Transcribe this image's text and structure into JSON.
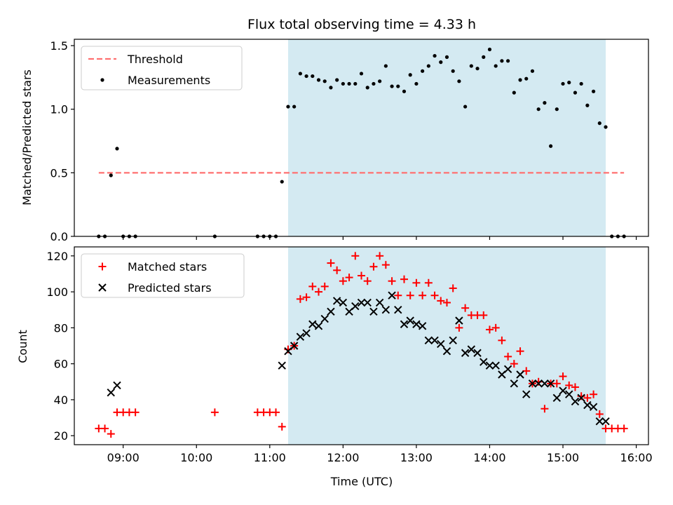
{
  "figure": {
    "title": "Flux total observing time = 4.33 h"
  },
  "colors": {
    "shade": "#add8e6",
    "threshold": "#ff7070",
    "measurement": "#000000",
    "matched": "#ff0000",
    "predicted": "#000000"
  },
  "chart_data": [
    {
      "type": "scatter",
      "title": "Flux total observing time = 4.33 h",
      "xlabel": "",
      "ylabel": "Matched/Predicted stars",
      "xlim": [
        "08:20",
        "16:10"
      ],
      "ylim": [
        0,
        1.55
      ],
      "y_ticks": [
        0.0,
        0.5,
        1.0,
        1.5
      ],
      "y_tick_labels": [
        "0.0",
        "0.5",
        "1.0",
        "1.5"
      ],
      "grid": false,
      "legend_position": "top-left",
      "shaded_region": {
        "start": "11:15",
        "end": "15:35"
      },
      "series": [
        {
          "name": "Threshold",
          "style": "dashed-line",
          "x": [
            "08:40",
            "15:50"
          ],
          "y": [
            0.5,
            0.5
          ]
        },
        {
          "name": "Measurements",
          "style": "dot",
          "x": [
            "08:40",
            "08:45",
            "08:50",
            "08:55",
            "09:00",
            "09:05",
            "09:10",
            "10:15",
            "10:50",
            "10:55",
            "11:00",
            "11:05",
            "11:10",
            "11:15",
            "11:20",
            "11:25",
            "11:30",
            "11:35",
            "11:40",
            "11:45",
            "11:50",
            "11:55",
            "12:00",
            "12:05",
            "12:10",
            "12:15",
            "12:20",
            "12:25",
            "12:30",
            "12:35",
            "12:40",
            "12:45",
            "12:50",
            "12:55",
            "13:00",
            "13:05",
            "13:10",
            "13:15",
            "13:20",
            "13:25",
            "13:30",
            "13:35",
            "13:40",
            "13:45",
            "13:50",
            "13:55",
            "14:00",
            "14:05",
            "14:10",
            "14:15",
            "14:20",
            "14:25",
            "14:30",
            "14:35",
            "14:40",
            "14:45",
            "14:50",
            "14:55",
            "15:00",
            "15:05",
            "15:10",
            "15:15",
            "15:20",
            "15:25",
            "15:30",
            "15:35",
            "15:40",
            "15:45",
            "15:50"
          ],
          "y": [
            0,
            0,
            0.48,
            0.69,
            0,
            0,
            0,
            0,
            0,
            0,
            0,
            0,
            0.43,
            1.02,
            1.02,
            1.28,
            1.26,
            1.26,
            1.23,
            1.22,
            1.17,
            1.23,
            1.2,
            1.2,
            1.2,
            1.28,
            1.17,
            1.2,
            1.22,
            1.34,
            1.18,
            1.18,
            1.14,
            1.27,
            1.2,
            1.3,
            1.34,
            1.42,
            1.37,
            1.41,
            1.3,
            1.22,
            1.02,
            1.34,
            1.32,
            1.41,
            1.47,
            1.34,
            1.38,
            1.38,
            1.13,
            1.23,
            1.24,
            1.3,
            1.0,
            1.05,
            0.71,
            1.0,
            1.2,
            1.21,
            1.13,
            1.2,
            1.03,
            1.14,
            0.89,
            0.86,
            0,
            0,
            0
          ]
        }
      ]
    },
    {
      "type": "scatter",
      "xlabel": "Time (UTC)",
      "ylabel": "Count",
      "xlim": [
        "08:20",
        "16:10"
      ],
      "ylim": [
        15,
        125
      ],
      "x_tick_labels": [
        "09:00",
        "10:00",
        "11:00",
        "12:00",
        "13:00",
        "14:00",
        "15:00",
        "16:00"
      ],
      "y_ticks": [
        20,
        40,
        60,
        80,
        100,
        120
      ],
      "y_tick_labels": [
        "20",
        "40",
        "60",
        "80",
        "100",
        "120"
      ],
      "grid": false,
      "legend_position": "top-left",
      "shaded_region": {
        "start": "11:15",
        "end": "15:35"
      },
      "series": [
        {
          "name": "Matched stars",
          "marker": "plus",
          "x": [
            "08:40",
            "08:45",
            "08:50",
            "08:55",
            "09:00",
            "09:05",
            "09:10",
            "10:15",
            "10:50",
            "10:55",
            "11:00",
            "11:05",
            "11:10",
            "11:15",
            "11:20",
            "11:25",
            "11:30",
            "11:35",
            "11:40",
            "11:45",
            "11:50",
            "11:55",
            "12:00",
            "12:05",
            "12:10",
            "12:15",
            "12:20",
            "12:25",
            "12:30",
            "12:35",
            "12:40",
            "12:45",
            "12:50",
            "12:55",
            "13:00",
            "13:05",
            "13:10",
            "13:15",
            "13:20",
            "13:25",
            "13:30",
            "13:35",
            "13:40",
            "13:45",
            "13:50",
            "13:55",
            "14:00",
            "14:05",
            "14:10",
            "14:15",
            "14:20",
            "14:25",
            "14:30",
            "14:35",
            "14:40",
            "14:45",
            "14:50",
            "14:55",
            "15:00",
            "15:05",
            "15:10",
            "15:15",
            "15:20",
            "15:25",
            "15:30",
            "15:35",
            "15:40",
            "15:45",
            "15:50"
          ],
          "y": [
            24,
            24,
            21,
            33,
            33,
            33,
            33,
            33,
            33,
            33,
            33,
            33,
            25,
            68,
            70,
            96,
            97,
            103,
            100,
            103,
            116,
            112,
            106,
            108,
            120,
            109,
            106,
            114,
            120,
            115,
            106,
            98,
            107,
            98,
            105,
            98,
            105,
            98,
            95,
            94,
            102,
            80,
            91,
            87,
            87,
            87,
            79,
            80,
            73,
            64,
            60,
            67,
            56,
            49,
            50,
            35,
            49,
            49,
            53,
            48,
            47,
            42,
            41,
            43,
            32,
            24,
            24,
            24,
            24
          ]
        },
        {
          "name": "Predicted stars",
          "marker": "x",
          "x": [
            "08:50",
            "08:55",
            "11:10",
            "11:15",
            "11:20",
            "11:25",
            "11:30",
            "11:35",
            "11:40",
            "11:45",
            "11:50",
            "11:55",
            "12:00",
            "12:05",
            "12:10",
            "12:15",
            "12:20",
            "12:25",
            "12:30",
            "12:35",
            "12:40",
            "12:45",
            "12:50",
            "12:55",
            "13:00",
            "13:05",
            "13:10",
            "13:15",
            "13:20",
            "13:25",
            "13:30",
            "13:35",
            "13:40",
            "13:45",
            "13:50",
            "13:55",
            "14:00",
            "14:05",
            "14:10",
            "14:15",
            "14:20",
            "14:25",
            "14:30",
            "14:35",
            "14:40",
            "14:45",
            "14:50",
            "14:55",
            "15:00",
            "15:05",
            "15:10",
            "15:15",
            "15:20",
            "15:25",
            "15:30",
            "15:35"
          ],
          "y": [
            44,
            48,
            59,
            67,
            70,
            75,
            77,
            82,
            81,
            85,
            89,
            95,
            94,
            89,
            92,
            94,
            94,
            89,
            94,
            90,
            98,
            90,
            82,
            84,
            82,
            81,
            73,
            73,
            71,
            67,
            73,
            84,
            66,
            68,
            66,
            61,
            59,
            59,
            54,
            57,
            49,
            54,
            43,
            49,
            49,
            49,
            49,
            41,
            45,
            43,
            39,
            41,
            37,
            36,
            28,
            28
          ]
        }
      ]
    }
  ]
}
